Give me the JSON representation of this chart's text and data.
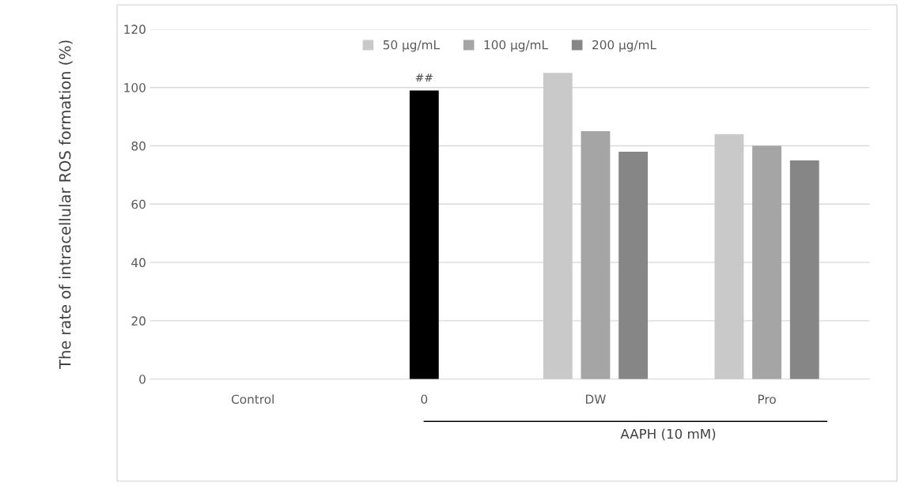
{
  "chart_data": {
    "type": "bar",
    "ylabel": "The rate of intracellular ROS formation (%)",
    "categories": [
      "Control",
      "0",
      "DW",
      "Pro"
    ],
    "series": [
      {
        "color": "#000000",
        "values": [
          null,
          99,
          null,
          null
        ]
      },
      {
        "name": "50 μg/mL",
        "color": "#c9c9c9",
        "values": [
          null,
          null,
          105,
          84
        ]
      },
      {
        "name": "100 μg/mL",
        "color": "#a5a5a5",
        "values": [
          null,
          null,
          85,
          80
        ]
      },
      {
        "name": "200 μg/mL",
        "color": "#868686",
        "values": [
          null,
          null,
          78,
          75
        ]
      }
    ],
    "ylim": [
      0,
      120
    ],
    "yticks": [
      0,
      20,
      40,
      60,
      80,
      100,
      120
    ],
    "grid": "y",
    "legend": "top",
    "annotations": [
      {
        "text": "##",
        "x": "0",
        "y": 99
      },
      "AAPH (10 mM)"
    ]
  }
}
